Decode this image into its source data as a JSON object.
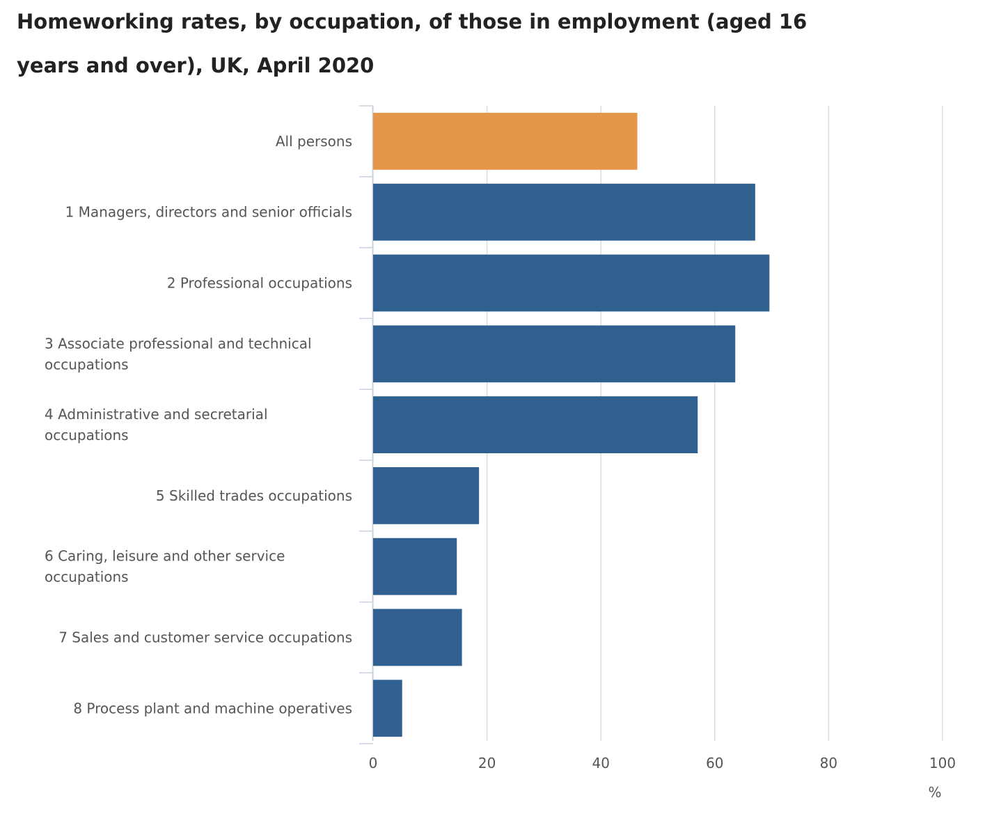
{
  "chart_data": {
    "type": "bar",
    "orientation": "horizontal",
    "title": "Homeworking rates, by occupation, of those in employment (aged 16 years and over), UK, April 2020",
    "xlabel": "%",
    "ylabel": "",
    "xlim": [
      0,
      100
    ],
    "ticks": [
      "0",
      "20",
      "40",
      "60",
      "80",
      "100"
    ],
    "tick_values": [
      0,
      20,
      40,
      60,
      80,
      100
    ],
    "grid": true,
    "legend": "none",
    "categories": [
      "All persons",
      "1 Managers, directors and senior officials",
      "2 Professional occupations",
      "3 Associate professional and technical occupations",
      "4 Administrative and secretarial occupations",
      "5 Skilled trades occupations",
      "6 Caring, leisure and other service occupations",
      "7 Sales and customer service occupations",
      "8 Process plant and machine operatives"
    ],
    "values": [
      46.4,
      67.1,
      69.6,
      63.6,
      57.0,
      18.6,
      14.7,
      15.6,
      5.1
    ],
    "colors": {
      "highlight": "#e6964a",
      "default": "#2f6090",
      "grid": "#dddddd",
      "axis": "#c8d2e0",
      "text": "#555555"
    }
  }
}
